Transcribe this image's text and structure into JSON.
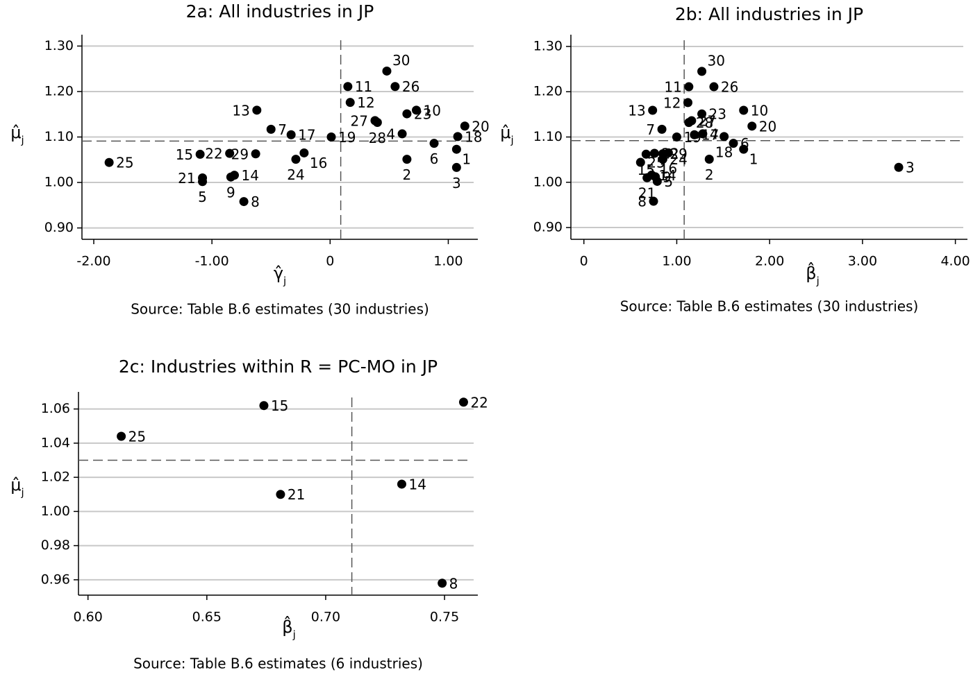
{
  "chart_data": [
    {
      "type": "scatter",
      "title": "2a: All industries in JP",
      "source": "Source: Table B.6 estimates (30 industries)",
      "xlabel": "γ̂",
      "xlabel_subscript": "j",
      "ylabel": "μ̂",
      "ylabel_subscript": "j",
      "color": "#000000",
      "grid": true,
      "labels": [
        "1",
        "2",
        "3",
        "4",
        "5",
        "6",
        "7",
        "8",
        "9",
        "10",
        "11",
        "12",
        "13",
        "14",
        "15",
        "16",
        "17",
        "18",
        "19",
        "20",
        "21",
        "22",
        "23",
        "24",
        "25",
        "26",
        "27",
        "28",
        "29",
        "30"
      ],
      "x": [
        1.07,
        0.65,
        1.07,
        0.61,
        -1.08,
        0.88,
        -0.5,
        -0.73,
        -0.84,
        0.73,
        0.15,
        0.17,
        -0.62,
        -0.81,
        -1.1,
        -0.22,
        -0.33,
        1.08,
        0.01,
        1.14,
        -1.08,
        -0.85,
        0.65,
        -0.29,
        -1.87,
        0.55,
        0.38,
        0.4,
        -0.63,
        0.48
      ],
      "y": [
        1.073,
        1.051,
        1.033,
        1.107,
        1.002,
        1.086,
        1.117,
        0.958,
        1.012,
        1.159,
        1.211,
        1.176,
        1.159,
        1.016,
        1.062,
        1.065,
        1.105,
        1.101,
        1.1,
        1.124,
        1.01,
        1.064,
        1.151,
        1.051,
        1.044,
        1.211,
        1.136,
        1.132,
        1.063,
        1.245
      ],
      "hline": 1.091,
      "vline": 0.09,
      "xlim": [
        -2.1,
        1.25
      ],
      "ylim": [
        0.875,
        1.325
      ],
      "xticks": [
        {
          "value": -2,
          "label": "-2.00"
        },
        {
          "value": -1,
          "label": "-1.00"
        },
        0,
        {
          "value": 1,
          "label": "1.00"
        }
      ],
      "yticks": [
        {
          "value": 0.9,
          "label": "0.90"
        },
        {
          "value": 1.0,
          "label": "1.00"
        },
        {
          "value": 1.1,
          "label": "1.10"
        },
        {
          "value": 1.2,
          "label": "1.20"
        },
        {
          "value": 1.3,
          "label": "1.30"
        }
      ]
    },
    {
      "type": "scatter",
      "title": "2b: All industries in JP",
      "source": "Source: Table B.6 estimates (30 industries)",
      "xlabel": "β̂",
      "xlabel_subscript": "j",
      "ylabel": "μ̂",
      "ylabel_subscript": "j",
      "color": "#000000",
      "grid": true,
      "labels": [
        "1",
        "2",
        "3",
        "4",
        "5",
        "6",
        "7",
        "8",
        "9",
        "10",
        "11",
        "12",
        "13",
        "14",
        "15",
        "16",
        "17",
        "18",
        "19",
        "20",
        "21",
        "22",
        "23",
        "24",
        "25",
        "26",
        "27",
        "28",
        "29",
        "30"
      ],
      "x": [
        1.72,
        1.35,
        3.39,
        1.28,
        0.79,
        1.61,
        0.84,
        0.75,
        0.77,
        1.72,
        1.13,
        1.12,
        0.74,
        0.73,
        0.67,
        0.91,
        1.19,
        1.51,
        1.0,
        1.81,
        0.68,
        0.76,
        1.27,
        0.85,
        0.61,
        1.4,
        1.16,
        1.13,
        0.85,
        1.27
      ],
      "y": [
        1.073,
        1.051,
        1.033,
        1.107,
        1.002,
        1.086,
        1.117,
        0.958,
        1.012,
        1.159,
        1.211,
        1.176,
        1.159,
        1.016,
        1.062,
        1.065,
        1.105,
        1.101,
        1.1,
        1.124,
        1.01,
        1.064,
        1.151,
        1.051,
        1.044,
        1.211,
        1.136,
        1.132,
        1.063,
        1.245
      ],
      "hline": 1.092,
      "vline": 1.08,
      "xlim": [
        -0.14,
        4.13
      ],
      "ylim": [
        0.874,
        1.326
      ],
      "xticks": [
        0,
        {
          "value": 1,
          "label": "1.00"
        },
        {
          "value": 2,
          "label": "2.00"
        },
        {
          "value": 3,
          "label": "3.00"
        },
        {
          "value": 4,
          "label": "4.00"
        }
      ],
      "yticks": [
        {
          "value": 0.9,
          "label": "0.90"
        },
        {
          "value": 1.0,
          "label": "1.00"
        },
        {
          "value": 1.1,
          "label": "1.10"
        },
        {
          "value": 1.2,
          "label": "1.20"
        },
        {
          "value": 1.3,
          "label": "1.30"
        }
      ]
    },
    {
      "type": "scatter",
      "title": "2c: Industries within R = PC-MO in JP",
      "source": "Source: Table B.6 estimates (6 industries)",
      "xlabel": "β̂",
      "xlabel_subscript": "j",
      "ylabel": "μ̂",
      "ylabel_subscript": "j",
      "color": "#000000",
      "grid": true,
      "labels": [
        "25",
        "15",
        "22",
        "21",
        "14",
        "8"
      ],
      "x": [
        0.614,
        0.674,
        0.758,
        0.681,
        0.732,
        0.749
      ],
      "y": [
        1.044,
        1.062,
        1.064,
        1.01,
        1.016,
        0.958
      ],
      "hline": 1.03,
      "vline": 0.711,
      "xlim": [
        0.596,
        0.764
      ],
      "ylim": [
        0.951,
        1.07
      ],
      "xticks": [
        {
          "value": 0.6,
          "label": "0.60"
        },
        0.65,
        {
          "value": 0.7,
          "label": "0.70"
        },
        0.75
      ],
      "yticks": [
        0.96,
        0.98,
        {
          "value": 1.0,
          "label": "1.00"
        },
        1.02,
        1.04,
        1.06
      ]
    }
  ]
}
